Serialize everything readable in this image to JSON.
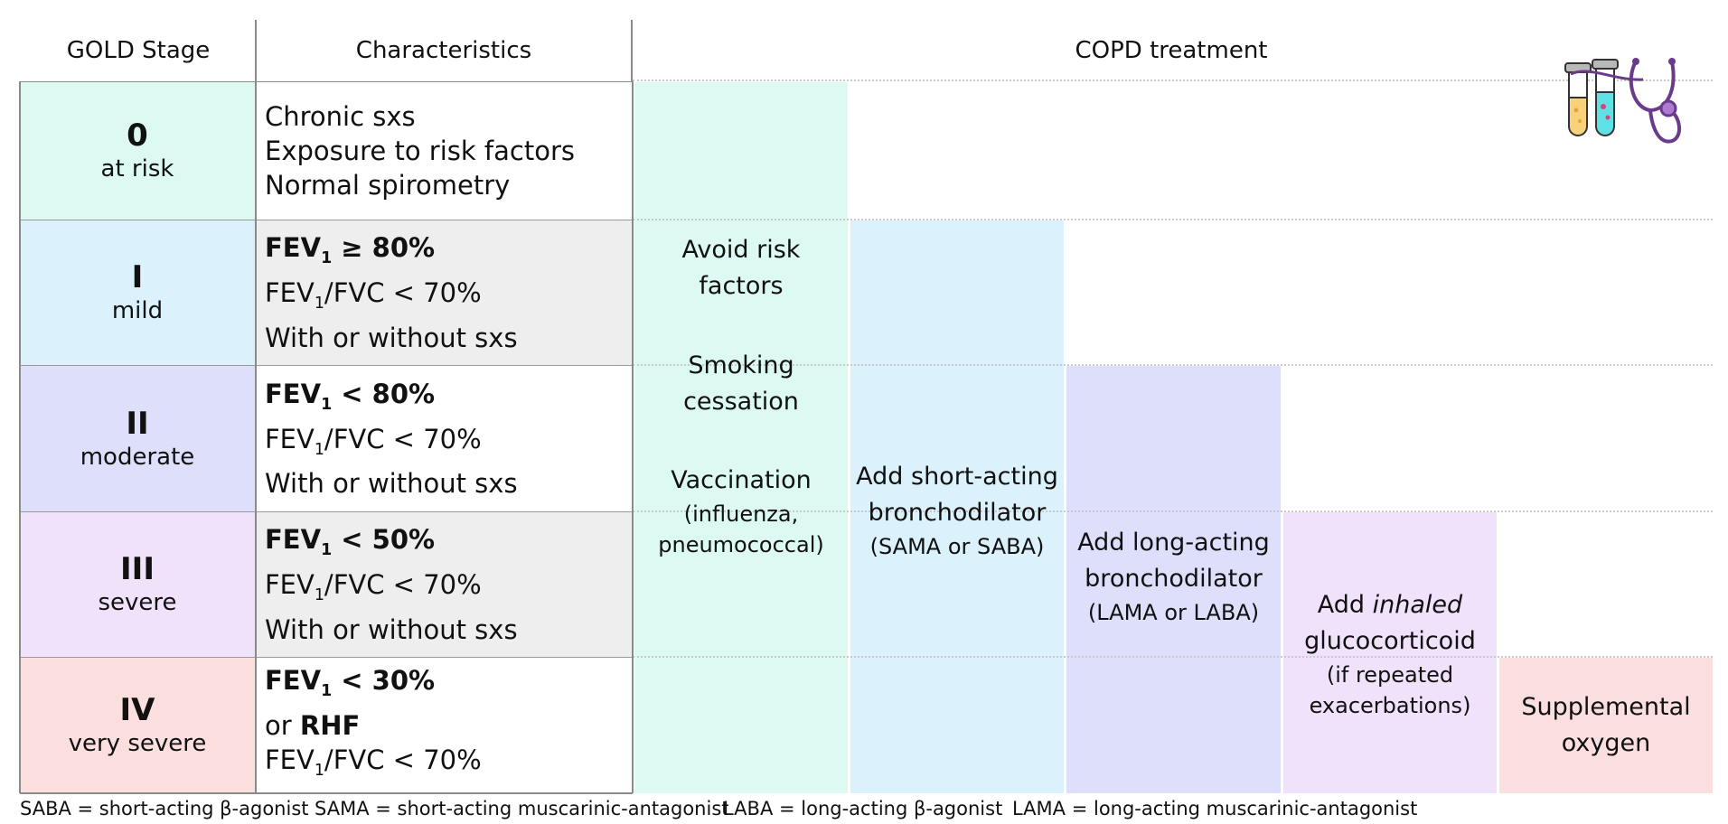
{
  "header": {
    "col_stage": "GOLD Stage",
    "col_characteristics": "Characteristics",
    "col_treatment": "COPD treatment"
  },
  "stages": [
    {
      "number": "0",
      "label": "at risk",
      "color": "#dcfaf1"
    },
    {
      "number": "I",
      "label": "mild",
      "color": "#dbf1fb"
    },
    {
      "number": "II",
      "label": "moderate",
      "color": "#dedffb"
    },
    {
      "number": "III",
      "label": "severe",
      "color": "#f1e2fb"
    },
    {
      "number": "IV",
      "label": "very severe",
      "color": "#fbdfdf"
    }
  ],
  "characteristics": [
    {
      "lines": [
        "Chronic sxs",
        "Exposure to risk factors",
        "Normal spirometry"
      ],
      "bg": "#ffffff"
    },
    {
      "fev1": "FEV",
      "fev1_sub": "1",
      "fev1_value": " ≥ 80%",
      "ratio_a": "FEV",
      "ratio_sub": "1",
      "ratio_b": "/FVC < 70%",
      "extra": "With or without sxs",
      "bg": "#eeeeee"
    },
    {
      "fev1": "FEV",
      "fev1_sub": "1",
      "fev1_value": " < 80%",
      "ratio_a": "FEV",
      "ratio_sub": "1",
      "ratio_b": "/FVC < 70%",
      "extra": "With or without sxs",
      "bg": "#ffffff"
    },
    {
      "fev1": "FEV",
      "fev1_sub": "1",
      "fev1_value": " < 50%",
      "ratio_a": "FEV",
      "ratio_sub": "1",
      "ratio_b": "/FVC < 70%",
      "extra": "With or without sxs",
      "bg": "#eeeeee"
    },
    {
      "fev1": "FEV",
      "fev1_sub": "1",
      "fev1_value": " < 30%",
      "or_prefix": "or ",
      "rhf": "RHF",
      "ratio_a": "FEV",
      "ratio_sub": "1",
      "ratio_b": "/FVC < 70%",
      "bg": "#ffffff"
    }
  ],
  "treatments": [
    {
      "color": "#dcfaf1",
      "avoid_1": "Avoid risk",
      "avoid_2": "factors",
      "smoking_1": "Smoking",
      "smoking_2": "cessation",
      "vacc_1": "Vaccination",
      "vacc_2": "(influenza,",
      "vacc_3": "pneumococcal)"
    },
    {
      "color": "#dbf1fb",
      "line1": "Add short-acting",
      "line2": "bronchodilator",
      "line3": "(SAMA or SABA)"
    },
    {
      "color": "#dedffb",
      "line1": "Add long-acting",
      "line2": "bronchodilator",
      "line3": "(LAMA or LABA)"
    },
    {
      "color": "#f1e2fb",
      "line1a": "Add ",
      "line1b": "inhaled",
      "line2": "glucocorticoid",
      "line3": "(if repeated",
      "line4": "exacerbations)"
    },
    {
      "color": "#fbdfdf",
      "line1": "Supplemental",
      "line2": "oxygen"
    }
  ],
  "footnotes": [
    "SABA = short-acting β-agonist",
    "SAMA = short-acting muscarinic-antagonist",
    "LABA = long-acting β-agonist",
    "LAMA = long-acting muscarinic-antagonist"
  ],
  "icon": "test-tubes-stethoscope-icon"
}
